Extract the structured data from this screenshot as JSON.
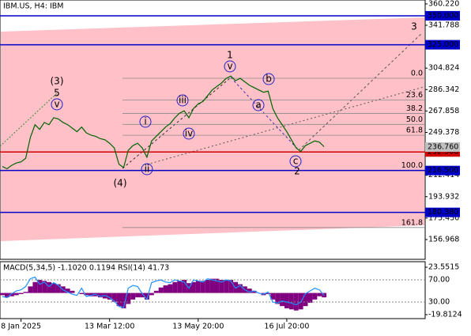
{
  "chart_data": {
    "type": "line",
    "title": "IBM.US, H4:  IBM",
    "categories": [
      null,
      null,
      null,
      null,
      "8 Jan 2025",
      null,
      null,
      null,
      null,
      null,
      null,
      null,
      null,
      null,
      null,
      null,
      null,
      null,
      null,
      null,
      null,
      null,
      null,
      "13 Mar 12:00",
      null,
      null,
      null,
      null,
      null,
      null,
      null,
      null,
      null,
      null,
      null,
      null,
      null,
      null,
      null,
      null,
      null,
      null,
      "13 May 20:00",
      null,
      null,
      null,
      null,
      null,
      null,
      null,
      null,
      null,
      null,
      null,
      null,
      null,
      null,
      null,
      null,
      null,
      null,
      "16 Jul 20:00",
      null,
      null,
      null,
      null,
      null,
      null,
      null,
      null
    ],
    "values": [
      220,
      218,
      221,
      223,
      224,
      227,
      245,
      256,
      252,
      258,
      256,
      262,
      261,
      258,
      256,
      253,
      250,
      254,
      249,
      247,
      246,
      244,
      243,
      240,
      236,
      222,
      219,
      234,
      238,
      240,
      236,
      228,
      242,
      246,
      250,
      254,
      257,
      262,
      266,
      268,
      262,
      270,
      274,
      276,
      281,
      286,
      289,
      292,
      296,
      298,
      294,
      296,
      293,
      290,
      288,
      286,
      284,
      285,
      270,
      262,
      256,
      250,
      243,
      236,
      233,
      238,
      240,
      242,
      241,
      237
    ],
    "color": "#006400",
    "ylim": [
      139.9,
      363.6
    ],
    "yticks": [
      {
        "value": 360.22,
        "label": "360.220"
      },
      341.788,
      {
        "value": 323.356,
        "label": "323.356"
      },
      304.824,
      286.342,
      267.858,
      249.378,
      230.896,
      212.414,
      193.932,
      {
        "value": 175.45,
        "label": "175.450"
      },
      156.968
    ],
    "levels": [
      {
        "value": 350,
        "label": "350.000",
        "color": "#0000c8"
      },
      {
        "value": 325,
        "label": "325.000",
        "color": "#0000c8"
      },
      {
        "value": 232.508,
        "label": "232.508",
        "color": "#d00000"
      },
      {
        "value": 216.5,
        "label": "216.500",
        "color": "#0000c8"
      },
      {
        "value": 180.38,
        "label": "180.380",
        "color": "#0000c8"
      }
    ],
    "current_price": {
      "value": 236.76,
      "label": "236.760"
    },
    "fib": [
      {
        "label": "0.0",
        "value": 296.1
      },
      {
        "label": "23.6",
        "value": 277.3
      },
      {
        "label": "38.2",
        "value": 265.7
      },
      {
        "label": "50.0",
        "value": 256.3
      },
      {
        "label": "61.8",
        "value": 246.9
      },
      {
        "label": "100.0",
        "value": 216.5
      },
      {
        "label": "161.8",
        "value": 167.3
      }
    ],
    "annotations": [
      "(3)",
      "5",
      "v",
      "(4)",
      "i",
      "ii",
      "iii",
      "iv",
      "1",
      "v",
      "a",
      "b",
      "c",
      "2",
      "3"
    ],
    "indicator": {
      "title": "MACD(5,34,5) -1.1020 0.1194 RSI(14) 41.73",
      "macd_lim": [
        -23.43,
        28.61
      ],
      "macd_ticks": [
        23.5515,
        -19.8124
      ],
      "rsi_lim": [
        0,
        102.9
      ],
      "rsi_ticks": [
        {
          "value": 70,
          "label": "70.00"
        },
        {
          "value": 30,
          "label": "30.00"
        }
      ],
      "macd": [
        -2,
        -4,
        -3,
        -2,
        -1,
        1,
        6,
        10,
        12,
        11,
        10,
        9,
        8,
        6,
        4,
        2,
        0,
        -1,
        -2,
        -3,
        -3,
        -4,
        -5,
        -6,
        -8,
        -12,
        -14,
        -10,
        -6,
        -4,
        -4,
        -6,
        -2,
        2,
        5,
        7,
        8,
        10,
        11,
        12,
        9,
        10,
        11,
        11,
        12,
        13,
        13,
        12,
        12,
        12,
        10,
        8,
        6,
        4,
        2,
        0,
        -2,
        -1,
        -6,
        -10,
        -12,
        -14,
        -15,
        -16,
        -15,
        -12,
        -9,
        -6,
        -3,
        -4
      ],
      "rsi": [
        40,
        38,
        45,
        50,
        52,
        58,
        72,
        75,
        62,
        66,
        58,
        65,
        60,
        52,
        48,
        44,
        42,
        55,
        40,
        42,
        44,
        40,
        42,
        38,
        32,
        22,
        20,
        55,
        60,
        58,
        45,
        35,
        65,
        68,
        70,
        66,
        65,
        70,
        68,
        66,
        55,
        70,
        68,
        66,
        72,
        70,
        68,
        66,
        70,
        68,
        55,
        60,
        52,
        48,
        50,
        46,
        44,
        48,
        30,
        28,
        32,
        30,
        28,
        25,
        30,
        45,
        50,
        55,
        52,
        42
      ]
    }
  }
}
